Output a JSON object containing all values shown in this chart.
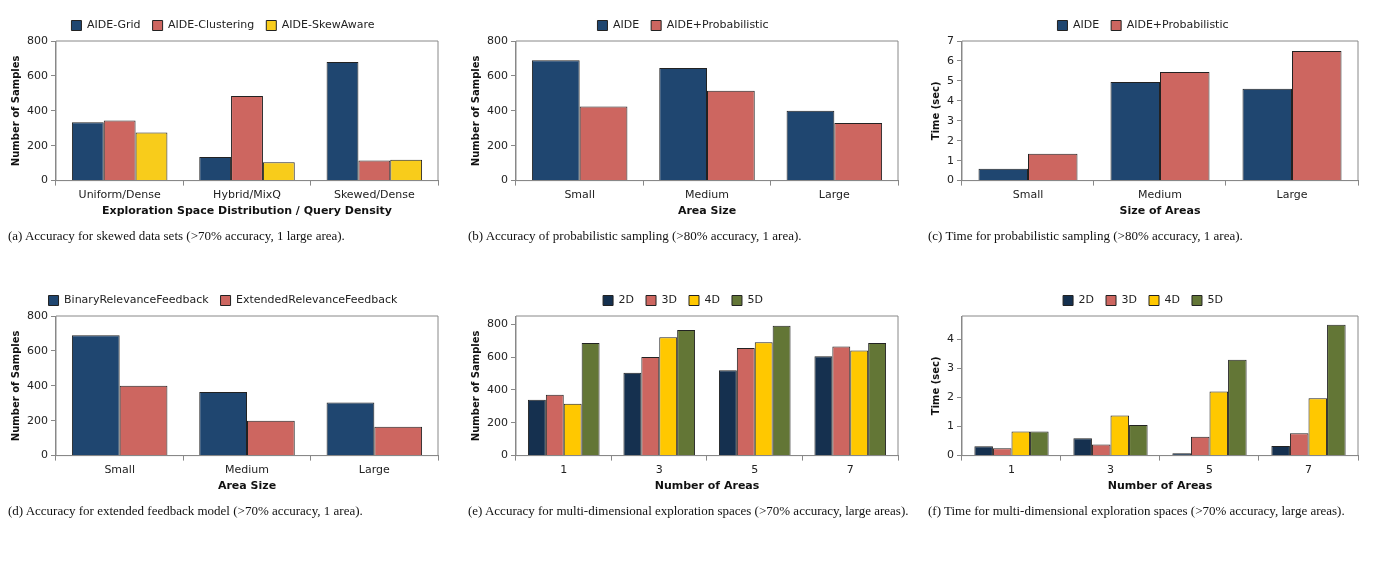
{
  "chart_data": [
    {
      "type": "bar",
      "xlabel": "Exploration Space Distribution / Query Density",
      "ylabel": "Number of Samples",
      "categories": [
        "Uniform/Dense",
        "Hybrid/MixQ",
        "Skewed/Dense"
      ],
      "series": [
        {
          "name": "AIDE-Grid",
          "color": "#1f4670",
          "values": [
            335,
            135,
            680
          ]
        },
        {
          "name": "AIDE-Clustering",
          "color": "#cd6660",
          "values": [
            345,
            485,
            115
          ]
        },
        {
          "name": "AIDE-SkewAware",
          "color": "#f8cc1b",
          "values": [
            275,
            105,
            120
          ]
        }
      ],
      "ylim": [
        0,
        800
      ],
      "yticks": [
        0,
        200,
        400,
        600,
        800
      ],
      "legend": "top",
      "annotations": [
        "(a) Accuracy for skewed data sets (>70% accuracy, 1 large area)."
      ]
    },
    {
      "type": "bar",
      "xlabel": "Area Size",
      "ylabel": "Number of Samples",
      "categories": [
        "Small",
        "Medium",
        "Large"
      ],
      "series": [
        {
          "name": "AIDE",
          "color": "#1f4670",
          "values": [
            690,
            645,
            400
          ]
        },
        {
          "name": "AIDE+Probabilistic",
          "color": "#cd6660",
          "values": [
            425,
            515,
            330
          ]
        }
      ],
      "ylim": [
        0,
        800
      ],
      "yticks": [
        0,
        200,
        400,
        600,
        800
      ],
      "legend": "top",
      "annotations": [
        "(b) Accuracy of probabilistic sampling (>80% accuracy, 1 area)."
      ]
    },
    {
      "type": "bar",
      "xlabel": "Size of Areas",
      "ylabel": "Time (sec)",
      "categories": [
        "Small",
        "Medium",
        "Large"
      ],
      "series": [
        {
          "name": "AIDE",
          "color": "#1f4670",
          "values": [
            0.6,
            4.95,
            4.6
          ]
        },
        {
          "name": "AIDE+Probabilistic",
          "color": "#cd6660",
          "values": [
            1.35,
            5.45,
            6.5
          ]
        }
      ],
      "ylim": [
        0,
        7
      ],
      "yticks": [
        0,
        1,
        2,
        3,
        4,
        5,
        6,
        7
      ],
      "legend": "top",
      "annotations": [
        "(c) Time for probabilistic sampling (>80% accuracy, 1 area)."
      ]
    },
    {
      "type": "bar",
      "xlabel": "Area Size",
      "ylabel": "Number of Samples",
      "categories": [
        "Small",
        "Medium",
        "Large"
      ],
      "series": [
        {
          "name": "BinaryRelevanceFeedback",
          "color": "#1f4670",
          "values": [
            690,
            365,
            305
          ]
        },
        {
          "name": "ExtendedRelevanceFeedback",
          "color": "#cd6660",
          "values": [
            400,
            200,
            165
          ]
        }
      ],
      "ylim": [
        0,
        800
      ],
      "yticks": [
        0,
        200,
        400,
        600,
        800
      ],
      "legend": "top",
      "annotations": [
        "(d) Accuracy for extended feedback model (>70% accuracy, 1 area)."
      ]
    },
    {
      "type": "bar",
      "xlabel": "Number of Areas",
      "ylabel": "Number of Samples",
      "categories": [
        "1",
        "3",
        "5",
        "7"
      ],
      "series": [
        {
          "name": "2D",
          "color": "#15304f",
          "values": [
            340,
            505,
            520,
            605
          ]
        },
        {
          "name": "3D",
          "color": "#cd6660",
          "values": [
            370,
            600,
            655,
            665
          ]
        },
        {
          "name": "4D",
          "color": "#ffc800",
          "values": [
            315,
            720,
            690,
            640
          ]
        },
        {
          "name": "5D",
          "color": "#637636",
          "values": [
            685,
            765,
            790,
            685
          ]
        }
      ],
      "ylim": [
        0,
        850
      ],
      "yticks": [
        0,
        200,
        400,
        600,
        800
      ],
      "legend": "top",
      "annotations": [
        "(e) Accuracy for multi-dimensional exploration spaces (>70% accuracy, large areas)."
      ]
    },
    {
      "type": "bar",
      "xlabel": "Number of Areas",
      "ylabel": "Time (sec)",
      "categories": [
        "1",
        "3",
        "5",
        "7"
      ],
      "series": [
        {
          "name": "2D",
          "color": "#15304f",
          "values": [
            0.32,
            0.6,
            0.08,
            0.33
          ]
        },
        {
          "name": "3D",
          "color": "#cd6660",
          "values": [
            0.25,
            0.38,
            0.65,
            0.77
          ]
        },
        {
          "name": "4D",
          "color": "#ffc800",
          "values": [
            0.83,
            1.38,
            2.2,
            1.97
          ]
        },
        {
          "name": "5D",
          "color": "#637636",
          "values": [
            0.83,
            1.05,
            3.3,
            4.5
          ]
        }
      ],
      "ylim": [
        0,
        4.8
      ],
      "yticks": [
        0,
        1,
        2,
        3,
        4
      ],
      "legend": "top",
      "annotations": [
        "(f) Time for multi-dimensional exploration spaces (>70% accuracy, large areas)."
      ]
    }
  ]
}
